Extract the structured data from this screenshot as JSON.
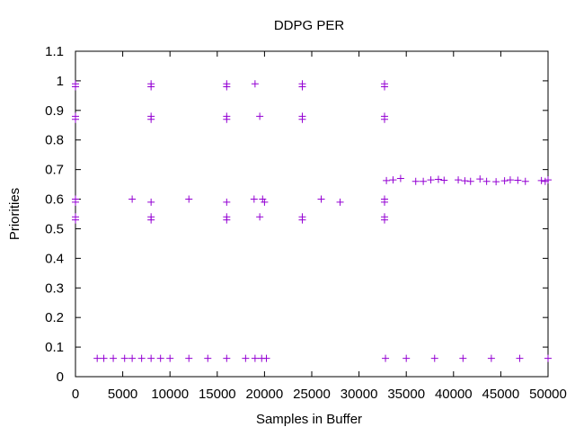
{
  "chart_data": {
    "type": "scatter",
    "title": "DDPG PER",
    "xlabel": "Samples in Buffer",
    "ylabel": "Priorities",
    "xlim": [
      0,
      50000
    ],
    "ylim": [
      0,
      1.1
    ],
    "x_ticks": [
      0,
      5000,
      10000,
      15000,
      20000,
      25000,
      30000,
      35000,
      40000,
      45000,
      50000
    ],
    "y_ticks": [
      0,
      0.1,
      0.2,
      0.3,
      0.4,
      0.5,
      0.6,
      0.7,
      0.8,
      0.9,
      1,
      1.1
    ],
    "x_tick_labels": [
      "0",
      "5000",
      "10000",
      "15000",
      "20000",
      "25000",
      "30000",
      "35000",
      "40000",
      "45000",
      "50000"
    ],
    "y_tick_labels": [
      "0",
      "0.1",
      "0.2",
      "0.3",
      "0.4",
      "0.5",
      "0.6",
      "0.7",
      "0.8",
      "0.9",
      "1",
      "1.1"
    ],
    "grid": false,
    "legend": "none",
    "marker": "+",
    "color": "#9400d3",
    "series": [
      {
        "points": [
          [
            0,
            0.99
          ],
          [
            8000,
            0.99
          ],
          [
            16000,
            0.99
          ],
          [
            19000,
            0.99
          ],
          [
            24000,
            0.99
          ],
          [
            32700,
            0.99
          ],
          [
            0,
            0.98
          ],
          [
            8000,
            0.98
          ],
          [
            16000,
            0.98
          ],
          [
            24000,
            0.98
          ],
          [
            32700,
            0.98
          ],
          [
            0,
            0.88
          ],
          [
            8000,
            0.88
          ],
          [
            16000,
            0.88
          ],
          [
            19500,
            0.88
          ],
          [
            24000,
            0.88
          ],
          [
            32700,
            0.88
          ],
          [
            0,
            0.87
          ],
          [
            8000,
            0.87
          ],
          [
            16000,
            0.87
          ],
          [
            24000,
            0.87
          ],
          [
            32700,
            0.87
          ],
          [
            0,
            0.6
          ],
          [
            6000,
            0.6
          ],
          [
            12000,
            0.6
          ],
          [
            18900,
            0.6
          ],
          [
            19800,
            0.6
          ],
          [
            26000,
            0.6
          ],
          [
            32700,
            0.6
          ],
          [
            0,
            0.59
          ],
          [
            8000,
            0.59
          ],
          [
            16000,
            0.59
          ],
          [
            20000,
            0.59
          ],
          [
            28000,
            0.59
          ],
          [
            32700,
            0.59
          ],
          [
            0,
            0.54
          ],
          [
            8000,
            0.54
          ],
          [
            16000,
            0.54
          ],
          [
            19500,
            0.54
          ],
          [
            24000,
            0.54
          ],
          [
            32700,
            0.54
          ],
          [
            0,
            0.53
          ],
          [
            8000,
            0.53
          ],
          [
            16000,
            0.53
          ],
          [
            24000,
            0.53
          ],
          [
            32700,
            0.53
          ],
          [
            2300,
            0.062
          ],
          [
            3000,
            0.062
          ],
          [
            4000,
            0.062
          ],
          [
            5200,
            0.062
          ],
          [
            6000,
            0.062
          ],
          [
            7000,
            0.062
          ],
          [
            8000,
            0.062
          ],
          [
            9000,
            0.062
          ],
          [
            10000,
            0.062
          ],
          [
            12000,
            0.062
          ],
          [
            14000,
            0.062
          ],
          [
            16000,
            0.062
          ],
          [
            18000,
            0.062
          ],
          [
            19000,
            0.062
          ],
          [
            19700,
            0.062
          ],
          [
            20200,
            0.062
          ],
          [
            32800,
            0.062
          ],
          [
            35000,
            0.062
          ],
          [
            38000,
            0.062
          ],
          [
            41000,
            0.062
          ],
          [
            44000,
            0.062
          ],
          [
            47000,
            0.062
          ],
          [
            50000,
            0.062
          ],
          [
            32900,
            0.663
          ],
          [
            33600,
            0.665
          ],
          [
            34400,
            0.67
          ],
          [
            36000,
            0.66
          ],
          [
            36800,
            0.66
          ],
          [
            37600,
            0.665
          ],
          [
            38400,
            0.667
          ],
          [
            39000,
            0.664
          ],
          [
            40500,
            0.665
          ],
          [
            41200,
            0.662
          ],
          [
            41800,
            0.66
          ],
          [
            42800,
            0.668
          ],
          [
            43500,
            0.66
          ],
          [
            44500,
            0.659
          ],
          [
            45400,
            0.662
          ],
          [
            46000,
            0.665
          ],
          [
            46800,
            0.664
          ],
          [
            47600,
            0.66
          ],
          [
            49300,
            0.663
          ],
          [
            49700,
            0.66
          ],
          [
            50000,
            0.665
          ]
        ]
      }
    ]
  }
}
